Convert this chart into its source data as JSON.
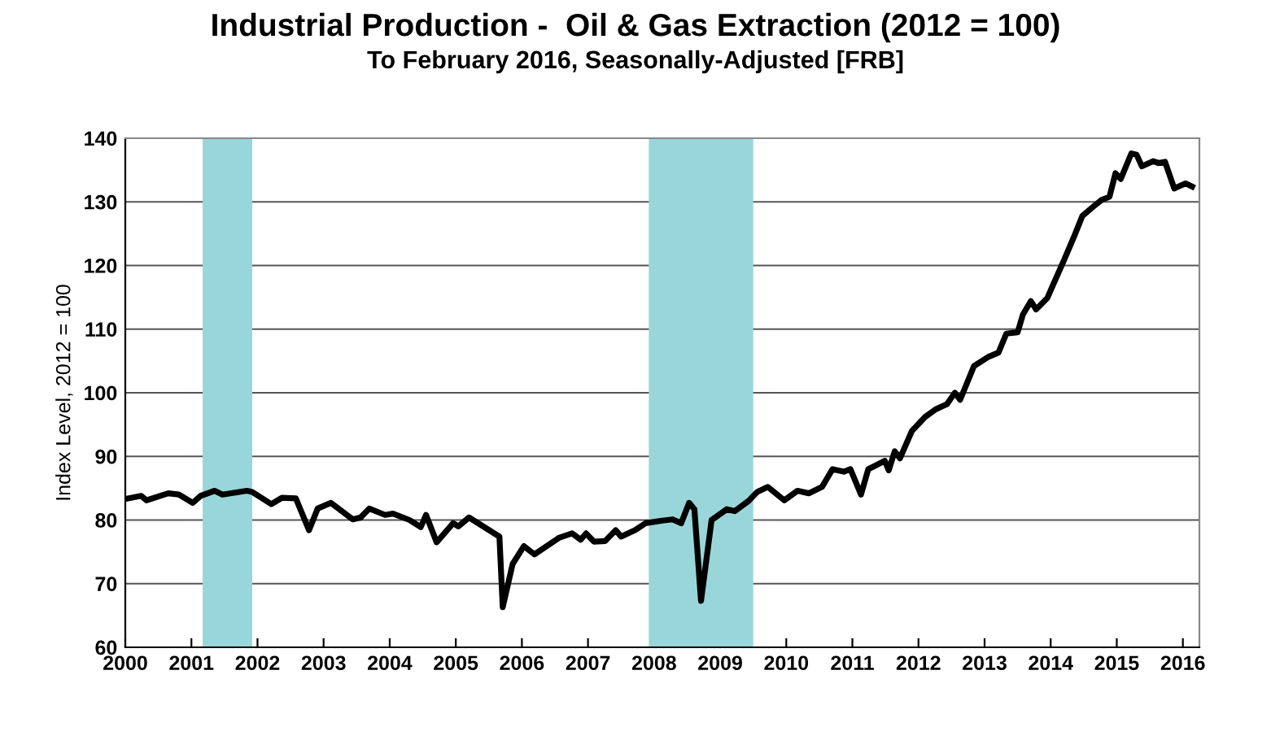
{
  "chart_data": {
    "type": "line",
    "title": "Industrial Production -  Oil & Gas Extraction (2012 = 100)",
    "subtitle": "To February 2016, Seasonally-Adjusted [FRB]",
    "ylabel": "Index Level, 2012 = 100",
    "series": [
      {
        "color": "#000000",
        "x": [
          2000.0,
          2000.24,
          2000.32,
          2000.65,
          2000.81,
          2001.02,
          2001.14,
          2001.35,
          2001.47,
          2001.84,
          2001.92,
          2002.21,
          2002.37,
          2002.58,
          2002.78,
          2002.91,
          2003.11,
          2003.44,
          2003.56,
          2003.69,
          2003.93,
          2004.05,
          2004.3,
          2004.47,
          2004.55,
          2004.71,
          2004.96,
          2005.04,
          2005.2,
          2005.66,
          2005.71,
          2005.86,
          2006.03,
          2006.19,
          2006.56,
          2006.76,
          2006.89,
          2006.97,
          2007.09,
          2007.26,
          2007.42,
          2007.5,
          2007.71,
          2007.87,
          2008.12,
          2008.28,
          2008.41,
          2008.53,
          2008.61,
          2008.71,
          2008.87,
          2009.1,
          2009.22,
          2009.43,
          2009.56,
          2009.72,
          2009.97,
          2010.17,
          2010.34,
          2010.54,
          2010.7,
          2010.87,
          2010.97,
          2011.13,
          2011.24,
          2011.49,
          2011.55,
          2011.64,
          2011.72,
          2011.9,
          2012.1,
          2012.26,
          2012.43,
          2012.55,
          2012.63,
          2012.84,
          2013.05,
          2013.21,
          2013.33,
          2013.5,
          2013.58,
          2013.7,
          2013.78,
          2013.95,
          2014.03,
          2014.2,
          2014.36,
          2014.48,
          2014.65,
          2014.77,
          2014.89,
          2014.98,
          2015.06,
          2015.22,
          2015.3,
          2015.38,
          2015.55,
          2015.63,
          2015.73,
          2015.87,
          2016.04,
          2016.14
        ],
        "values": [
          83.3,
          83.8,
          83.1,
          84.2,
          84.0,
          82.7,
          83.8,
          84.6,
          84.0,
          84.6,
          84.4,
          82.5,
          83.5,
          83.4,
          78.4,
          81.8,
          82.7,
          80.1,
          80.4,
          81.8,
          80.8,
          81.0,
          80.0,
          78.9,
          80.8,
          76.5,
          79.5,
          79.0,
          80.4,
          77.4,
          66.3,
          73.1,
          75.9,
          74.6,
          77.2,
          77.9,
          76.9,
          77.9,
          76.6,
          76.7,
          78.4,
          77.4,
          78.4,
          79.5,
          79.9,
          80.1,
          79.5,
          82.7,
          81.7,
          67.3,
          80.0,
          81.7,
          81.4,
          83.0,
          84.4,
          85.2,
          83.1,
          84.6,
          84.2,
          85.2,
          88.0,
          87.6,
          88.0,
          84.0,
          88.0,
          89.3,
          87.8,
          90.8,
          89.7,
          94.0,
          96.2,
          97.4,
          98.2,
          100.0,
          98.9,
          104.2,
          105.6,
          106.3,
          109.3,
          109.5,
          112.3,
          114.4,
          113.1,
          114.9,
          116.8,
          120.8,
          124.7,
          127.8,
          129.3,
          130.3,
          130.8,
          134.5,
          133.6,
          137.6,
          137.4,
          135.6,
          136.4,
          136.1,
          136.3,
          132.1,
          132.9,
          132.4
        ]
      }
    ],
    "xlim": [
      2000,
      2016.25
    ],
    "xticks": [
      2000,
      2001,
      2002,
      2003,
      2004,
      2005,
      2006,
      2007,
      2008,
      2009,
      2010,
      2011,
      2012,
      2013,
      2014,
      2015,
      2016
    ],
    "ylim": [
      60,
      140
    ],
    "yticks": [
      60,
      70,
      80,
      90,
      100,
      110,
      120,
      130,
      140
    ],
    "bands": [
      {
        "axis": "x",
        "from": 2001.17,
        "to": 2001.92,
        "color": "#99d6d9"
      },
      {
        "axis": "x",
        "from": 2007.92,
        "to": 2009.5,
        "color": "#99d6d9"
      }
    ],
    "grid": "y",
    "legend": false,
    "marker": "none",
    "line_style": "solid"
  }
}
